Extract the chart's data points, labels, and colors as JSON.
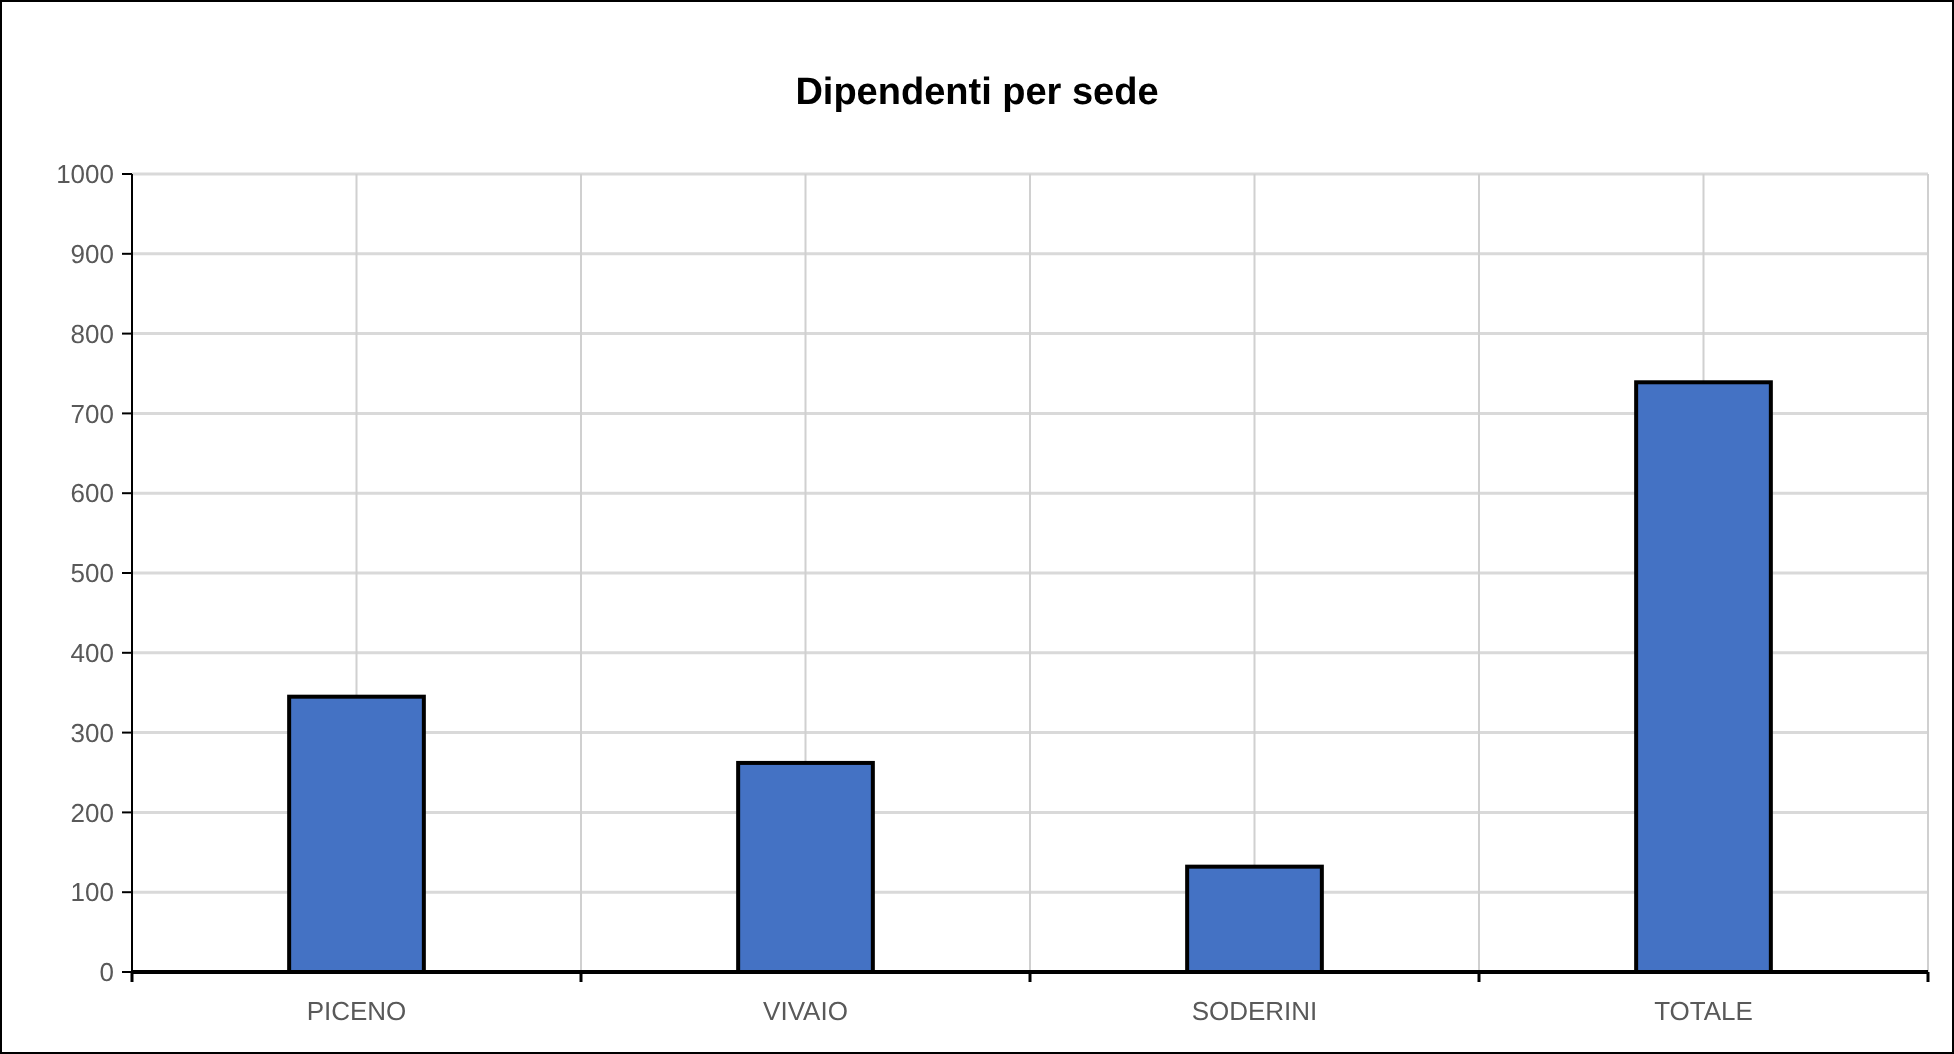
{
  "chart_data": {
    "type": "bar",
    "title": "Dipendenti per sede",
    "categories": [
      "PICENO",
      "VIVAIO",
      "SODERINI",
      "TOTALE"
    ],
    "values": [
      345,
      262,
      132,
      739
    ],
    "color": "#4472c4",
    "ylim": [
      0,
      1000
    ],
    "yticks": [
      0,
      100,
      200,
      300,
      400,
      500,
      600,
      700,
      800,
      900,
      1000
    ],
    "grid": true
  }
}
